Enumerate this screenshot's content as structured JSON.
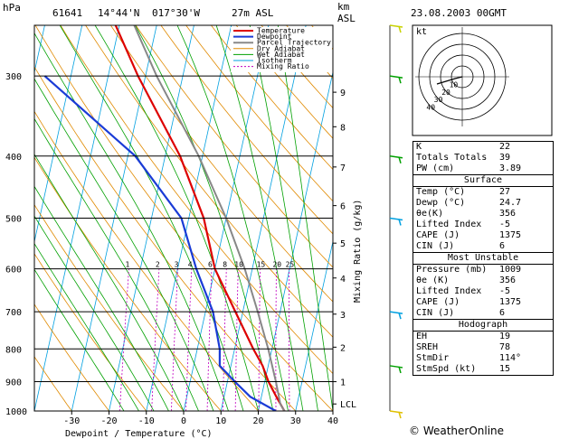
{
  "header": {
    "station": "61641",
    "lat": "14°44'N",
    "lon": "017°30'W",
    "elev": "27m ASL",
    "datetime": "23.08.2003 00GMT",
    "hpa_label": "hPa",
    "km_label": "km",
    "asl_label": "ASL"
  },
  "chart_data": {
    "type": "line",
    "xlabel": "Dewpoint / Temperature (°C)",
    "ylabel": "Mixing Ratio (g/kg)",
    "xlim": [
      -40,
      40
    ],
    "ylim": [
      1000,
      250
    ],
    "pressure_ticks": [
      300,
      400,
      500,
      600,
      700,
      800,
      900,
      1000
    ],
    "temp_ticks": [
      -30,
      -20,
      -10,
      0,
      10,
      20,
      30,
      40
    ],
    "km_ticks": [
      {
        "label": "9",
        "p": 318
      },
      {
        "label": "8",
        "p": 360
      },
      {
        "label": "7",
        "p": 416
      },
      {
        "label": "6",
        "p": 478
      },
      {
        "label": "5",
        "p": 547
      },
      {
        "label": "4",
        "p": 620
      },
      {
        "label": "3",
        "p": 706
      },
      {
        "label": "2",
        "p": 795
      },
      {
        "label": "1",
        "p": 900
      },
      {
        "label": "LCL",
        "p": 975
      }
    ],
    "mixing_ratio_labels": [
      "1",
      "2",
      "3",
      "4",
      "6",
      "8",
      "10",
      "15",
      "20",
      "25"
    ],
    "legend": [
      "Temperature",
      "Dewpoint",
      "Parcel Trajectory",
      "Dry Adiabat",
      "Wet Adiabat",
      "Isotherm",
      "Mixing Ratio"
    ],
    "series": [
      {
        "name": "Temperature",
        "color": "#dd0000",
        "points": [
          [
            1000,
            27
          ],
          [
            950,
            24
          ],
          [
            900,
            21
          ],
          [
            850,
            18.5
          ],
          [
            800,
            15
          ],
          [
            700,
            8
          ],
          [
            600,
            0
          ],
          [
            500,
            -6
          ],
          [
            400,
            -16
          ],
          [
            300,
            -32
          ],
          [
            250,
            -41
          ]
        ]
      },
      {
        "name": "Dewpoint",
        "color": "#1a3bd6",
        "points": [
          [
            1000,
            24.7
          ],
          [
            950,
            17
          ],
          [
            900,
            12
          ],
          [
            850,
            7
          ],
          [
            800,
            6
          ],
          [
            700,
            2
          ],
          [
            600,
            -5
          ],
          [
            500,
            -12
          ],
          [
            400,
            -28
          ],
          [
            300,
            -57
          ]
        ]
      },
      {
        "name": "Parcel Trajectory",
        "color": "#888888",
        "points": [
          [
            1000,
            27
          ],
          [
            975,
            25.5
          ],
          [
            900,
            23
          ],
          [
            800,
            19
          ],
          [
            700,
            14
          ],
          [
            600,
            8
          ],
          [
            500,
            0
          ],
          [
            400,
            -11
          ],
          [
            300,
            -27
          ],
          [
            250,
            -36
          ]
        ]
      }
    ]
  },
  "hodograph": {
    "kt_label": "kt",
    "ring_labels": [
      "10",
      "20",
      "30",
      "40"
    ]
  },
  "indices": {
    "top": [
      {
        "label": "K",
        "value": "22"
      },
      {
        "label": "Totals Totals",
        "value": "39"
      },
      {
        "label": "PW (cm)",
        "value": "3.89"
      }
    ],
    "surface_title": "Surface",
    "surface": [
      {
        "label": "Temp (°C)",
        "value": "27"
      },
      {
        "label": "Dewp (°C)",
        "value": "24.7"
      },
      {
        "label": "θe(K)",
        "value": "356"
      },
      {
        "label": "Lifted Index",
        "value": "-5"
      },
      {
        "label": "CAPE (J)",
        "value": "1375"
      },
      {
        "label": "CIN (J)",
        "value": "6"
      }
    ],
    "unstable_title": "Most Unstable",
    "unstable": [
      {
        "label": "Pressure (mb)",
        "value": "1009"
      },
      {
        "label": "θe (K)",
        "value": "356"
      },
      {
        "label": "Lifted Index",
        "value": "-5"
      },
      {
        "label": "CAPE (J)",
        "value": "1375"
      },
      {
        "label": "CIN (J)",
        "value": "6"
      }
    ],
    "hodo_title": "Hodograph",
    "hodo": [
      {
        "label": "EH",
        "value": "19"
      },
      {
        "label": "SREH",
        "value": "78"
      },
      {
        "label": "StmDir",
        "value": "114°"
      },
      {
        "label": "StmSpd (kt)",
        "value": "15"
      }
    ]
  },
  "colors": {
    "temperature": "#dd0000",
    "dewpoint": "#1a3bd6",
    "parcel": "#888888",
    "dry_adiabat": "#e08a00",
    "wet_adiabat": "#00a000",
    "isotherm": "#00a0e0",
    "mixing_ratio": "#c000c0"
  },
  "copyright": "© WeatherOnline"
}
